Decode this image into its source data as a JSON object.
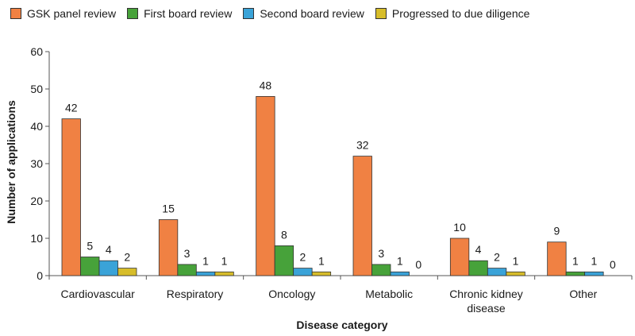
{
  "chart_data": {
    "type": "bar",
    "categories": [
      [
        "Cardiovascular"
      ],
      [
        "Respiratory"
      ],
      [
        "Oncology"
      ],
      [
        "Metabolic"
      ],
      [
        "Chronic kidney",
        "disease"
      ],
      [
        "Other"
      ]
    ],
    "series": [
      {
        "name": "GSK panel review",
        "color": "#f08143",
        "values": [
          42,
          15,
          48,
          32,
          10,
          9
        ]
      },
      {
        "name": "First board review",
        "color": "#47a23a",
        "values": [
          5,
          3,
          8,
          3,
          4,
          1
        ]
      },
      {
        "name": "Second board review",
        "color": "#3aa3d8",
        "values": [
          4,
          1,
          2,
          1,
          2,
          1
        ]
      },
      {
        "name": "Progressed to due diligence",
        "color": "#d7bd2a",
        "values": [
          2,
          1,
          1,
          0,
          1,
          0
        ]
      }
    ],
    "xlabel": "Disease category",
    "ylabel": "Number of applications",
    "ylim": [
      0,
      60
    ],
    "yticks": [
      0,
      10,
      20,
      30,
      40,
      50,
      60
    ],
    "legend_position": "top-left",
    "grid": false
  }
}
